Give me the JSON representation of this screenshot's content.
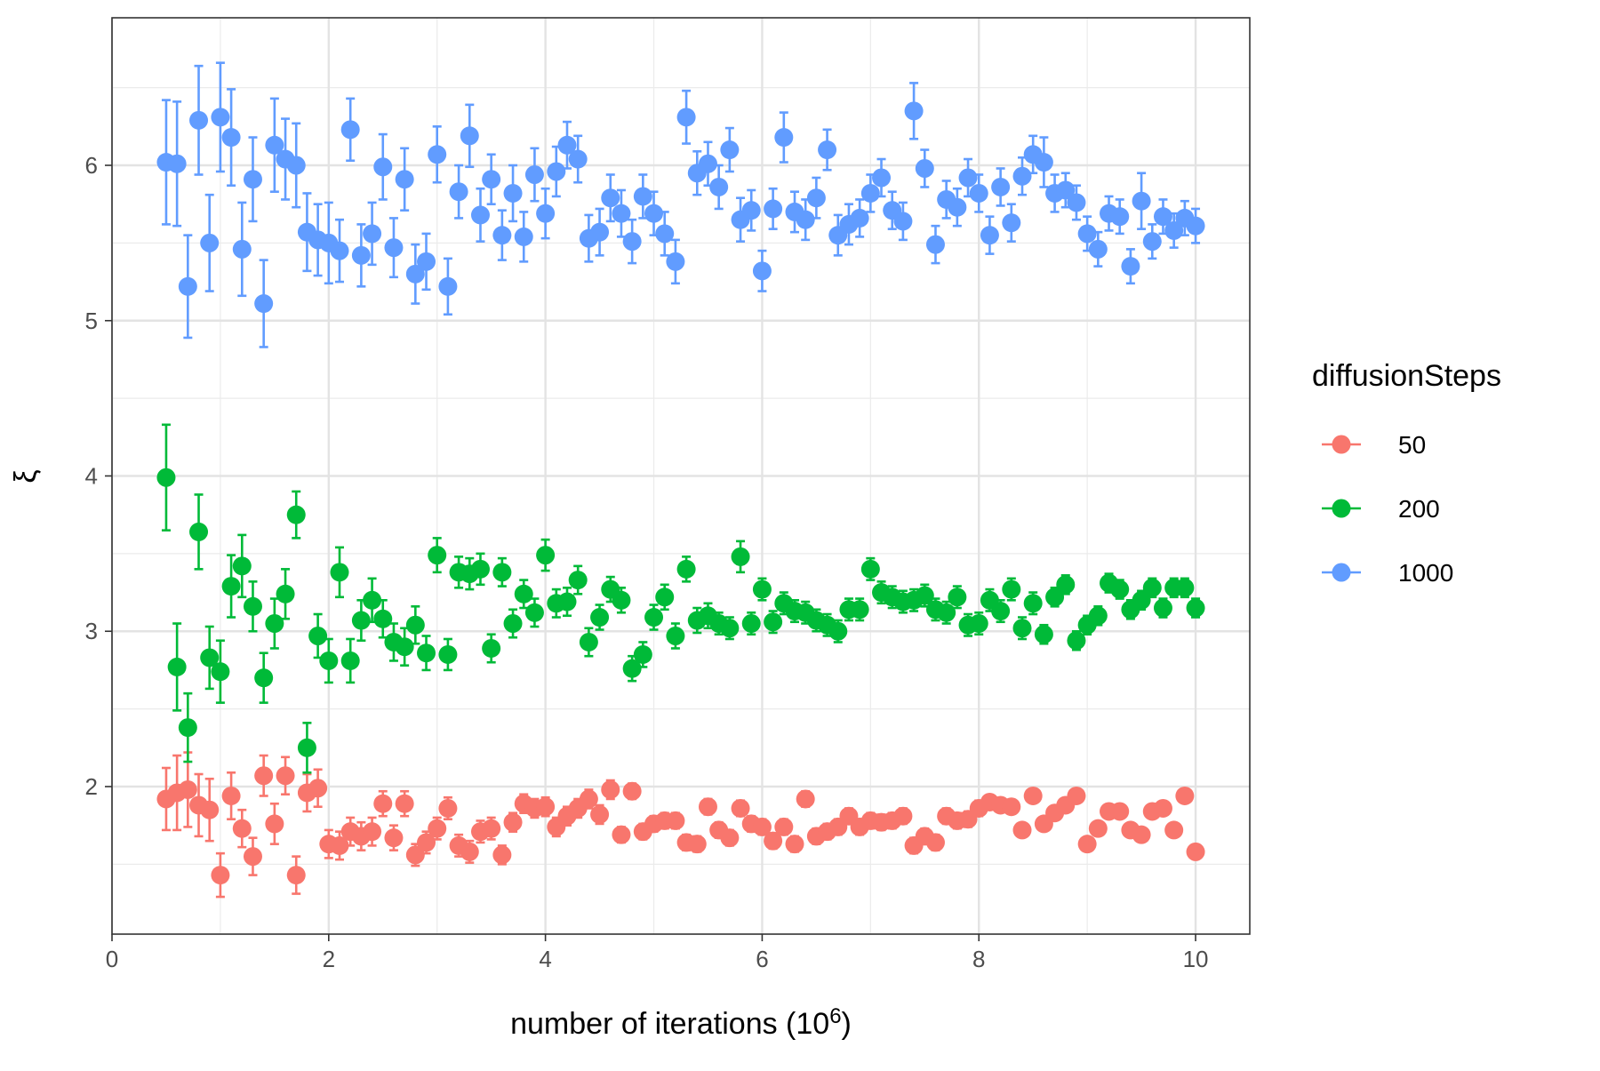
{
  "chart_data": {
    "type": "scatter",
    "xlabel": "number of iterations (10",
    "xlabel_superscript": "6",
    "xlabel_suffix": ")",
    "ylabel": "ξ",
    "xlim": [
      0,
      10.5
    ],
    "ylim": [
      1.05,
      6.95
    ],
    "x_ticks": [
      0,
      2,
      4,
      6,
      8,
      10
    ],
    "y_ticks": [
      2,
      3,
      4,
      5,
      6
    ],
    "grid": true,
    "legend": {
      "title": "diffusionSteps",
      "position": "right"
    },
    "series": [
      {
        "name": "50",
        "color": "#F8766D",
        "x": [
          0.5,
          0.6,
          0.7,
          0.8,
          0.9,
          1.0,
          1.1,
          1.2,
          1.3,
          1.4,
          1.5,
          1.6,
          1.7,
          1.8,
          1.9,
          2.0,
          2.1,
          2.2,
          2.3,
          2.4,
          2.5,
          2.6,
          2.7,
          2.8,
          2.9,
          3.0,
          3.1,
          3.2,
          3.3,
          3.4,
          3.5,
          3.6,
          3.7,
          3.8,
          3.9,
          4.0,
          4.1,
          4.2,
          4.3,
          4.4,
          4.5,
          4.6,
          4.7,
          4.8,
          4.9,
          5.0,
          5.1,
          5.2,
          5.3,
          5.4,
          5.5,
          5.6,
          5.7,
          5.8,
          5.9,
          6.0,
          6.1,
          6.2,
          6.3,
          6.4,
          6.5,
          6.6,
          6.7,
          6.8,
          6.9,
          7.0,
          7.1,
          7.2,
          7.3,
          7.4,
          7.5,
          7.6,
          7.7,
          7.8,
          7.9,
          8.0,
          8.1,
          8.2,
          8.3,
          8.4,
          8.5,
          8.6,
          8.7,
          8.8,
          8.9,
          9.0,
          9.1,
          9.2,
          9.3,
          9.4,
          9.5,
          9.6,
          9.7,
          9.8,
          9.9,
          10.0
        ],
        "y": [
          1.92,
          1.96,
          1.98,
          1.88,
          1.85,
          1.43,
          1.94,
          1.73,
          1.55,
          2.07,
          1.76,
          2.07,
          1.43,
          1.96,
          1.99,
          1.63,
          1.62,
          1.71,
          1.68,
          1.71,
          1.89,
          1.67,
          1.89,
          1.56,
          1.64,
          1.73,
          1.86,
          1.62,
          1.58,
          1.71,
          1.73,
          1.56,
          1.77,
          1.89,
          1.86,
          1.87,
          1.74,
          1.81,
          1.86,
          1.92,
          1.82,
          1.98,
          1.69,
          1.97,
          1.71,
          1.76,
          1.78,
          1.78,
          1.64,
          1.63,
          1.87,
          1.72,
          1.67,
          1.86,
          1.76,
          1.74,
          1.65,
          1.74,
          1.63,
          1.92,
          1.68,
          1.71,
          1.74,
          1.81,
          1.74,
          1.78,
          1.77,
          1.78,
          1.81,
          1.62,
          1.68,
          1.64,
          1.81,
          1.78,
          1.79,
          1.86,
          1.9,
          1.88,
          1.87,
          1.72,
          1.94,
          1.76,
          1.83,
          1.88,
          1.94,
          1.63,
          1.73,
          1.84,
          1.84,
          1.72,
          1.69,
          1.84,
          1.86,
          1.72,
          1.94,
          1.58
        ],
        "err": [
          0.2,
          0.24,
          0.24,
          0.2,
          0.2,
          0.14,
          0.15,
          0.12,
          0.12,
          0.13,
          0.13,
          0.12,
          0.12,
          0.12,
          0.12,
          0.09,
          0.09,
          0.09,
          0.09,
          0.09,
          0.08,
          0.08,
          0.08,
          0.07,
          0.07,
          0.07,
          0.07,
          0.07,
          0.07,
          0.07,
          0.07,
          0.06,
          0.06,
          0.06,
          0.06,
          0.06,
          0.06,
          0.06,
          0.06,
          0.06,
          0.06,
          0.06,
          0.05,
          0.05,
          0.05,
          0.05,
          0.05,
          0.05,
          0.05,
          0.05,
          0.05,
          0.05,
          0.05,
          0.05,
          0.05,
          0.05,
          0.05,
          0.05,
          0.05,
          0.05,
          0.05,
          0.05,
          0.05,
          0.05,
          0.05,
          0.05,
          0.05,
          0.05,
          0.05,
          0.05,
          0.05,
          0.05,
          0.05,
          0.05,
          0.05,
          0.05,
          0.04,
          0.04,
          0.04,
          0.04,
          0.04,
          0.04,
          0.04,
          0.04,
          0.04,
          0.04,
          0.04,
          0.04,
          0.04,
          0.04,
          0.04,
          0.04,
          0.04,
          0.04,
          0.04,
          0.04
        ]
      },
      {
        "name": "200",
        "color": "#00BA38",
        "x": [
          0.5,
          0.6,
          0.7,
          0.8,
          0.9,
          1.0,
          1.1,
          1.2,
          1.3,
          1.4,
          1.5,
          1.6,
          1.7,
          1.8,
          1.9,
          2.0,
          2.1,
          2.2,
          2.3,
          2.4,
          2.5,
          2.6,
          2.7,
          2.8,
          2.9,
          3.0,
          3.1,
          3.2,
          3.3,
          3.4,
          3.5,
          3.6,
          3.7,
          3.8,
          3.9,
          4.0,
          4.1,
          4.2,
          4.3,
          4.4,
          4.5,
          4.6,
          4.7,
          4.8,
          4.9,
          5.0,
          5.1,
          5.2,
          5.3,
          5.4,
          5.5,
          5.6,
          5.7,
          5.8,
          5.9,
          6.0,
          6.1,
          6.2,
          6.3,
          6.4,
          6.5,
          6.6,
          6.7,
          6.8,
          6.9,
          7.0,
          7.1,
          7.2,
          7.3,
          7.4,
          7.5,
          7.6,
          7.7,
          7.8,
          7.9,
          8.0,
          8.1,
          8.2,
          8.3,
          8.4,
          8.5,
          8.6,
          8.7,
          8.8,
          8.9,
          9.0,
          9.1,
          9.2,
          9.3,
          9.4,
          9.5,
          9.6,
          9.7,
          9.8,
          9.9,
          10.0
        ],
        "y": [
          3.99,
          2.77,
          2.38,
          3.64,
          2.83,
          2.74,
          3.29,
          3.42,
          3.16,
          2.7,
          3.05,
          3.24,
          3.75,
          2.25,
          2.97,
          2.81,
          3.38,
          2.81,
          3.07,
          3.2,
          3.08,
          2.93,
          2.9,
          3.04,
          2.86,
          3.49,
          2.85,
          3.38,
          3.37,
          3.4,
          2.89,
          3.38,
          3.05,
          3.24,
          3.12,
          3.49,
          3.18,
          3.19,
          3.33,
          2.93,
          3.09,
          3.27,
          3.2,
          2.76,
          2.85,
          3.09,
          3.22,
          2.97,
          3.4,
          3.07,
          3.1,
          3.05,
          3.02,
          3.48,
          3.05,
          3.27,
          3.06,
          3.18,
          3.13,
          3.12,
          3.07,
          3.04,
          3.0,
          3.14,
          3.14,
          3.4,
          3.25,
          3.22,
          3.19,
          3.2,
          3.23,
          3.14,
          3.12,
          3.22,
          3.04,
          3.05,
          3.2,
          3.13,
          3.27,
          3.02,
          3.18,
          2.98,
          3.22,
          3.3,
          2.94,
          3.04,
          3.1,
          3.31,
          3.27,
          3.14,
          3.2,
          3.28,
          3.15,
          3.28,
          3.28,
          3.15
        ],
        "err": [
          0.34,
          0.28,
          0.22,
          0.24,
          0.2,
          0.2,
          0.2,
          0.2,
          0.16,
          0.16,
          0.16,
          0.16,
          0.15,
          0.16,
          0.14,
          0.14,
          0.16,
          0.14,
          0.13,
          0.14,
          0.12,
          0.12,
          0.12,
          0.12,
          0.11,
          0.11,
          0.1,
          0.1,
          0.1,
          0.1,
          0.09,
          0.09,
          0.09,
          0.09,
          0.09,
          0.1,
          0.09,
          0.09,
          0.09,
          0.09,
          0.08,
          0.08,
          0.08,
          0.08,
          0.08,
          0.08,
          0.08,
          0.08,
          0.08,
          0.08,
          0.08,
          0.07,
          0.07,
          0.1,
          0.07,
          0.07,
          0.07,
          0.07,
          0.07,
          0.07,
          0.07,
          0.07,
          0.07,
          0.07,
          0.07,
          0.07,
          0.07,
          0.07,
          0.07,
          0.07,
          0.07,
          0.07,
          0.07,
          0.07,
          0.07,
          0.07,
          0.07,
          0.07,
          0.07,
          0.07,
          0.07,
          0.06,
          0.06,
          0.06,
          0.06,
          0.06,
          0.06,
          0.06,
          0.06,
          0.06,
          0.06,
          0.06,
          0.06,
          0.06,
          0.06,
          0.06
        ]
      },
      {
        "name": "1000",
        "color": "#619CFF",
        "x": [
          0.5,
          0.6,
          0.7,
          0.8,
          0.9,
          1.0,
          1.1,
          1.2,
          1.3,
          1.4,
          1.5,
          1.6,
          1.7,
          1.8,
          1.9,
          2.0,
          2.1,
          2.2,
          2.3,
          2.4,
          2.5,
          2.6,
          2.7,
          2.8,
          2.9,
          3.0,
          3.1,
          3.2,
          3.3,
          3.4,
          3.5,
          3.6,
          3.7,
          3.8,
          3.9,
          4.0,
          4.1,
          4.2,
          4.3,
          4.4,
          4.5,
          4.6,
          4.7,
          4.8,
          4.9,
          5.0,
          5.1,
          5.2,
          5.3,
          5.4,
          5.5,
          5.6,
          5.7,
          5.8,
          5.9,
          6.0,
          6.1,
          6.2,
          6.3,
          6.4,
          6.5,
          6.6,
          6.7,
          6.8,
          6.9,
          7.0,
          7.1,
          7.2,
          7.3,
          7.4,
          7.5,
          7.6,
          7.7,
          7.8,
          7.9,
          8.0,
          8.1,
          8.2,
          8.3,
          8.4,
          8.5,
          8.6,
          8.7,
          8.8,
          8.9,
          9.0,
          9.1,
          9.2,
          9.3,
          9.4,
          9.5,
          9.6,
          9.7,
          9.8,
          9.9,
          10.0
        ],
        "y": [
          6.02,
          6.01,
          5.22,
          6.29,
          5.5,
          6.31,
          6.18,
          5.46,
          5.91,
          5.11,
          6.13,
          6.04,
          6.0,
          5.57,
          5.52,
          5.5,
          5.45,
          6.23,
          5.42,
          5.56,
          5.99,
          5.47,
          5.91,
          5.3,
          5.38,
          6.07,
          5.22,
          5.83,
          6.19,
          5.68,
          5.91,
          5.55,
          5.82,
          5.54,
          5.94,
          5.69,
          5.96,
          6.13,
          6.04,
          5.53,
          5.57,
          5.79,
          5.69,
          5.51,
          5.8,
          5.69,
          5.56,
          5.38,
          6.31,
          5.95,
          6.01,
          5.86,
          6.1,
          5.65,
          5.71,
          5.32,
          5.72,
          6.18,
          5.7,
          5.65,
          5.79,
          6.1,
          5.55,
          5.62,
          5.66,
          5.82,
          5.92,
          5.71,
          5.64,
          6.35,
          5.98,
          5.49,
          5.78,
          5.73,
          5.92,
          5.82,
          5.55,
          5.86,
          5.63,
          5.93,
          6.07,
          6.02,
          5.82,
          5.84,
          5.76,
          5.56,
          5.46,
          5.69,
          5.67,
          5.35,
          5.77,
          5.51,
          5.67,
          5.58,
          5.66,
          5.61
        ],
        "err": [
          0.4,
          0.4,
          0.33,
          0.35,
          0.31,
          0.35,
          0.31,
          0.3,
          0.27,
          0.28,
          0.3,
          0.26,
          0.27,
          0.25,
          0.23,
          0.26,
          0.2,
          0.2,
          0.2,
          0.2,
          0.21,
          0.19,
          0.2,
          0.19,
          0.18,
          0.18,
          0.18,
          0.17,
          0.2,
          0.17,
          0.16,
          0.16,
          0.18,
          0.16,
          0.17,
          0.16,
          0.16,
          0.15,
          0.15,
          0.15,
          0.15,
          0.15,
          0.15,
          0.14,
          0.14,
          0.14,
          0.14,
          0.14,
          0.17,
          0.14,
          0.14,
          0.14,
          0.14,
          0.14,
          0.13,
          0.13,
          0.13,
          0.16,
          0.13,
          0.13,
          0.13,
          0.13,
          0.13,
          0.13,
          0.12,
          0.12,
          0.12,
          0.12,
          0.12,
          0.18,
          0.12,
          0.12,
          0.12,
          0.12,
          0.12,
          0.12,
          0.12,
          0.12,
          0.12,
          0.12,
          0.12,
          0.16,
          0.12,
          0.11,
          0.11,
          0.11,
          0.11,
          0.11,
          0.11,
          0.11,
          0.18,
          0.11,
          0.11,
          0.11,
          0.11,
          0.11
        ]
      }
    ]
  }
}
